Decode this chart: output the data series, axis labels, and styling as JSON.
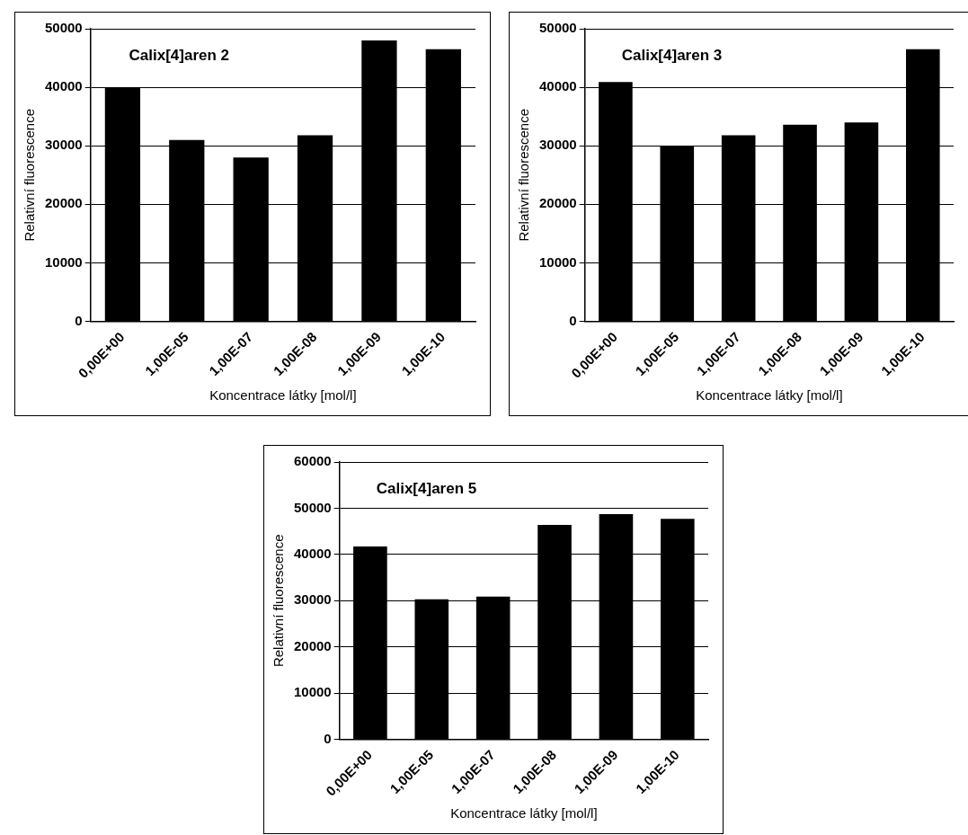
{
  "chart_data": [
    {
      "type": "bar",
      "title": "Calix[4]aren 2",
      "xlabel": "Koncentrace látky [mol/l]",
      "ylabel": "Relativní fluorescence",
      "categories": [
        "0,00E+00",
        "1,00E-05",
        "1,00E-07",
        "1,00E-08",
        "1,00E-09",
        "1,00E-10"
      ],
      "values": [
        40000,
        31000,
        28000,
        31800,
        48000,
        46500
      ],
      "color": "#000000",
      "ylim": [
        0,
        50000
      ],
      "yticks": [
        0,
        10000,
        20000,
        30000,
        40000,
        50000
      ],
      "grid": "y",
      "legend": false
    },
    {
      "type": "bar",
      "title": "Calix[4]aren 3",
      "xlabel": "Koncentrace látky [mol/l]",
      "ylabel": "Relativní fluorescence",
      "categories": [
        "0,00E+00",
        "1,00E-05",
        "1,00E-07",
        "1,00E-08",
        "1,00E-09",
        "1,00E-10"
      ],
      "values": [
        40900,
        30000,
        31800,
        33600,
        34000,
        46500
      ],
      "color": "#000000",
      "ylim": [
        0,
        50000
      ],
      "yticks": [
        0,
        10000,
        20000,
        30000,
        40000,
        50000
      ],
      "grid": "y",
      "legend": false
    },
    {
      "type": "bar",
      "title": "Calix[4]aren 5",
      "xlabel": "Koncentrace látky [mol/l]",
      "ylabel": "Relativní fluorescence",
      "categories": [
        "0,00E+00",
        "1,00E-05",
        "1,00E-07",
        "1,00E-08",
        "1,00E-09",
        "1,00E-10"
      ],
      "values": [
        41700,
        30300,
        30900,
        46400,
        48700,
        47700
      ],
      "color": "#000000",
      "ylim": [
        0,
        60000
      ],
      "yticks": [
        0,
        10000,
        20000,
        30000,
        40000,
        50000,
        60000
      ],
      "grid": "y",
      "legend": false
    }
  ]
}
